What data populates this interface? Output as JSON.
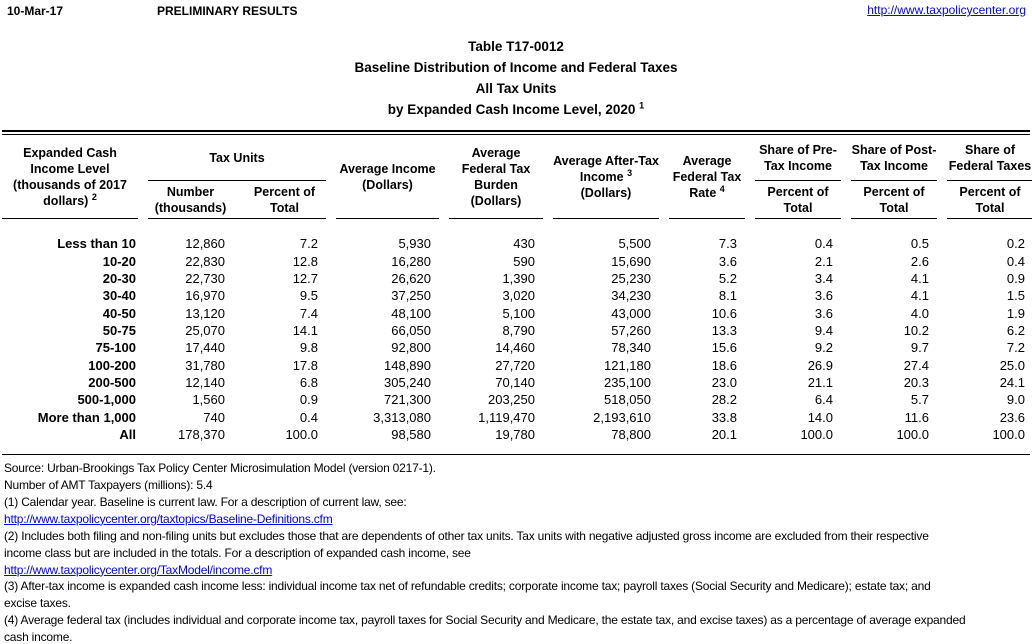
{
  "colors": {
    "link": "#0000EE",
    "text": "#000000"
  },
  "header_bar": {
    "date": "10-Mar-17",
    "status": "PRELIMINARY RESULTS",
    "link": "http://www.taxpolicycenter.org"
  },
  "title": {
    "line1": "Table T17-0012",
    "line2": "Baseline Distribution of Income and Federal Taxes",
    "line3": "All Tax Units",
    "line4": "by Expanded Cash Income Level, 2020",
    "line4_sup": "1"
  },
  "table": {
    "col1_header": {
      "text": "Expanded Cash Income Level (thousands of 2017 dollars)",
      "sup": "2"
    },
    "groups": {
      "tax_units": "Tax Units",
      "share_pre": "Share of Pre-Tax Income",
      "share_post": "Share of Post-Tax Income",
      "share_fed": "Share of Federal Taxes"
    },
    "subheaders": {
      "number": "Number (thousands)",
      "percent_of_total": "Percent of Total"
    },
    "headers": {
      "avg_income": "Average Income (Dollars)",
      "avg_burden": "Average Federal Tax Burden (Dollars)",
      "avg_after_tax": {
        "text": "Average After-Tax Income",
        "sup": "3",
        "unit": "(Dollars)"
      },
      "avg_rate": {
        "text": "Average Federal Tax Rate",
        "sup": "4"
      }
    },
    "rows": [
      {
        "label": "Less than 10",
        "values": [
          "12,860",
          "7.2",
          "5,930",
          "430",
          "5,500",
          "7.3",
          "0.4",
          "0.5",
          "0.2"
        ]
      },
      {
        "label": "10-20",
        "values": [
          "22,830",
          "12.8",
          "16,280",
          "590",
          "15,690",
          "3.6",
          "2.1",
          "2.6",
          "0.4"
        ]
      },
      {
        "label": "20-30",
        "values": [
          "22,730",
          "12.7",
          "26,620",
          "1,390",
          "25,230",
          "5.2",
          "3.4",
          "4.1",
          "0.9"
        ]
      },
      {
        "label": "30-40",
        "values": [
          "16,970",
          "9.5",
          "37,250",
          "3,020",
          "34,230",
          "8.1",
          "3.6",
          "4.1",
          "1.5"
        ]
      },
      {
        "label": "40-50",
        "values": [
          "13,120",
          "7.4",
          "48,100",
          "5,100",
          "43,000",
          "10.6",
          "3.6",
          "4.0",
          "1.9"
        ]
      },
      {
        "label": "50-75",
        "values": [
          "25,070",
          "14.1",
          "66,050",
          "8,790",
          "57,260",
          "13.3",
          "9.4",
          "10.2",
          "6.2"
        ]
      },
      {
        "label": "75-100",
        "values": [
          "17,440",
          "9.8",
          "92,800",
          "14,460",
          "78,340",
          "15.6",
          "9.2",
          "9.7",
          "7.2"
        ]
      },
      {
        "label": "100-200",
        "values": [
          "31,780",
          "17.8",
          "148,890",
          "27,720",
          "121,180",
          "18.6",
          "26.9",
          "27.4",
          "25.0"
        ]
      },
      {
        "label": "200-500",
        "values": [
          "12,140",
          "6.8",
          "305,240",
          "70,140",
          "235,100",
          "23.0",
          "21.1",
          "20.3",
          "24.1"
        ]
      },
      {
        "label": "500-1,000",
        "values": [
          "1,560",
          "0.9",
          "721,300",
          "203,250",
          "518,050",
          "28.2",
          "6.4",
          "5.7",
          "9.0"
        ]
      },
      {
        "label": "More than 1,000",
        "values": [
          "740",
          "0.4",
          "3,313,080",
          "1,119,470",
          "2,193,610",
          "33.8",
          "14.0",
          "11.6",
          "23.6"
        ]
      },
      {
        "label": "All",
        "values": [
          "178,370",
          "100.0",
          "98,580",
          "19,780",
          "78,800",
          "20.1",
          "100.0",
          "100.0",
          "100.0"
        ]
      }
    ]
  },
  "footnotes": {
    "lines": [
      {
        "text": "Source: Urban-Brookings Tax Policy Center Microsimulation Model (version 0217-1).",
        "link": false
      },
      {
        "text": "Number of AMT Taxpayers (millions): 5.4",
        "link": false
      },
      {
        "text": "(1) Calendar year. Baseline is current law. For a description of current law, see:",
        "link": false
      },
      {
        "text": "http://www.taxpolicycenter.org/taxtopics/Baseline-Definitions.cfm",
        "link": true
      },
      {
        "text": "(2) Includes both filing and non-filing units but excludes those that are dependents of other tax units. Tax units with negative adjusted gross income are excluded from their respective",
        "link": false
      },
      {
        "text": "income class but are included in the totals. For a description of expanded cash income, see",
        "link": false
      },
      {
        "text": "http://www.taxpolicycenter.org/TaxModel/income.cfm",
        "link": true
      },
      {
        "text": "(3) After-tax income is expanded cash income less: individual income tax net of refundable credits; corporate income tax; payroll taxes (Social Security and Medicare); estate tax; and",
        "link": false
      },
      {
        "text": "excise taxes.",
        "link": false
      },
      {
        "text": "(4) Average federal tax (includes individual and corporate income tax, payroll taxes for Social Security and Medicare, the estate tax, and excise taxes) as a percentage of average expanded",
        "link": false
      },
      {
        "text": "cash income.",
        "link": false
      }
    ]
  }
}
